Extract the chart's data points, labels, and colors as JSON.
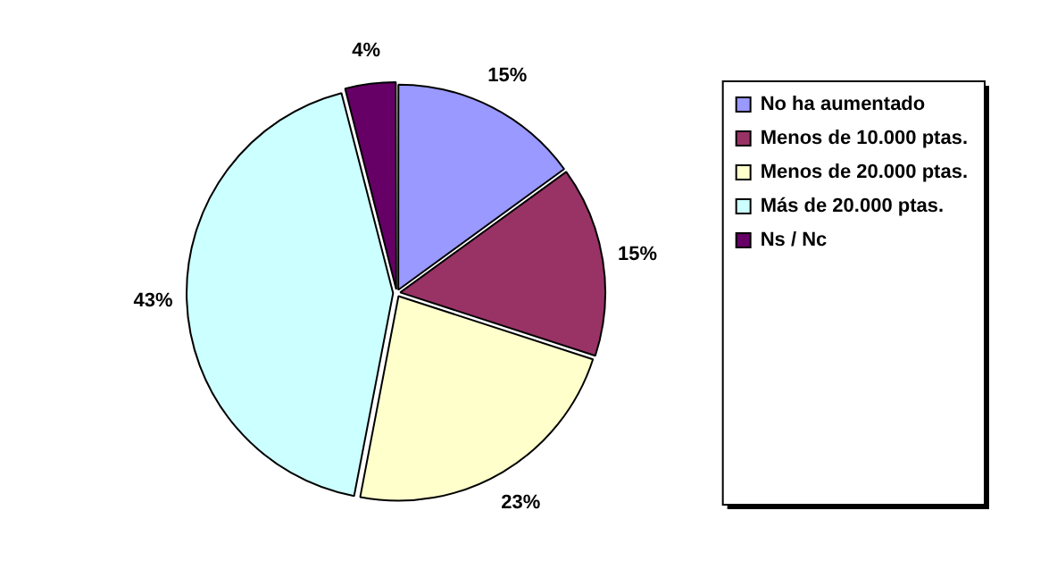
{
  "chart_data": {
    "type": "pie",
    "categories": [
      "No ha aumentado",
      "Menos de 10.000 ptas.",
      "Menos de 20.000 ptas.",
      "Más de 20.000 ptas.",
      "Ns / Nc"
    ],
    "values": [
      15,
      15,
      23,
      43,
      4
    ],
    "colors": [
      "#9999ff",
      "#993366",
      "#ffffcc",
      "#ccffff",
      "#660066"
    ],
    "value_labels": [
      "15%",
      "15%",
      "23%",
      "43%",
      "4%"
    ],
    "legend": "right"
  }
}
